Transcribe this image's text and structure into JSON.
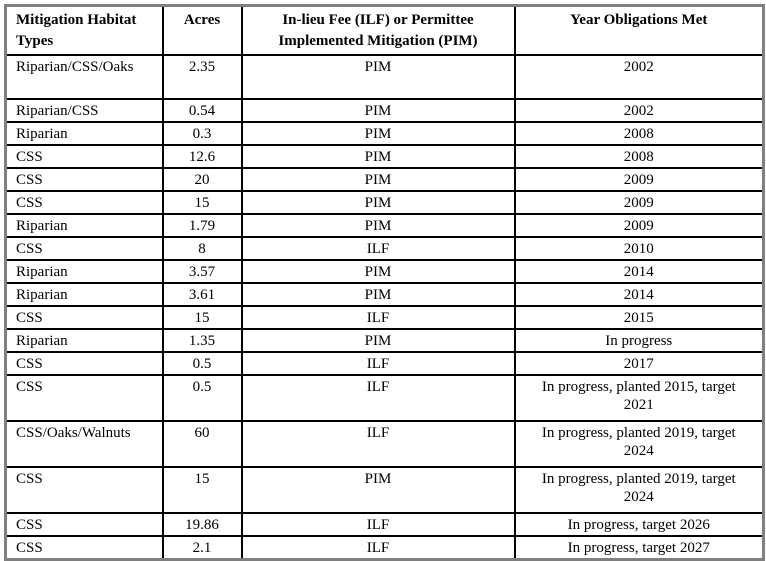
{
  "table": {
    "headers": [
      "Mitigation Habitat Types",
      "Acres",
      "In-lieu Fee (ILF) or Permittee Implemented Mitigation (PIM)",
      "Year Obligations Met"
    ],
    "rows": [
      {
        "habitat": "Riparian/CSS/Oaks",
        "acres": "2.35",
        "mitigation": "PIM",
        "year": "2002",
        "tall": true
      },
      {
        "habitat": "Riparian/CSS",
        "acres": "0.54",
        "mitigation": "PIM",
        "year": "2002"
      },
      {
        "habitat": "Riparian",
        "acres": "0.3",
        "mitigation": "PIM",
        "year": "2008"
      },
      {
        "habitat": "CSS",
        "acres": "12.6",
        "mitigation": "PIM",
        "year": "2008"
      },
      {
        "habitat": "CSS",
        "acres": "20",
        "mitigation": "PIM",
        "year": "2009"
      },
      {
        "habitat": "CSS",
        "acres": "15",
        "mitigation": "PIM",
        "year": "2009"
      },
      {
        "habitat": "Riparian",
        "acres": "1.79",
        "mitigation": "PIM",
        "year": "2009"
      },
      {
        "habitat": "CSS",
        "acres": "8",
        "mitigation": "ILF",
        "year": "2010"
      },
      {
        "habitat": "Riparian",
        "acres": "3.57",
        "mitigation": "PIM",
        "year": "2014"
      },
      {
        "habitat": "Riparian",
        "acres": "3.61",
        "mitigation": "PIM",
        "year": "2014"
      },
      {
        "habitat": "CSS",
        "acres": "15",
        "mitigation": "ILF",
        "year": "2015"
      },
      {
        "habitat": "Riparian",
        "acres": "1.35",
        "mitigation": "PIM",
        "year": "In progress"
      },
      {
        "habitat": "CSS",
        "acres": "0.5",
        "mitigation": "ILF",
        "year": "2017"
      },
      {
        "habitat": "CSS",
        "acres": "0.5",
        "mitigation": "ILF",
        "year": "In progress, planted 2015, target\n2021",
        "wrap": true
      },
      {
        "habitat": "CSS/Oaks/Walnuts",
        "acres": "60",
        "mitigation": "ILF",
        "year": "In progress, planted 2019, target\n2024",
        "wrap": true
      },
      {
        "habitat": "CSS",
        "acres": "15",
        "mitigation": "PIM",
        "year": "In progress, planted 2019, target\n2024",
        "wrap": true
      },
      {
        "habitat": "CSS",
        "acres": "19.86",
        "mitigation": "ILF",
        "year": "In progress, target 2026"
      },
      {
        "habitat": "CSS",
        "acres": "2.1",
        "mitigation": "ILF",
        "year": "In progress, target 2027"
      }
    ],
    "colors": {
      "background": "#ffffff",
      "text": "#000000",
      "inner_border": "#000000",
      "outer_border": "#7f7f7f"
    }
  }
}
